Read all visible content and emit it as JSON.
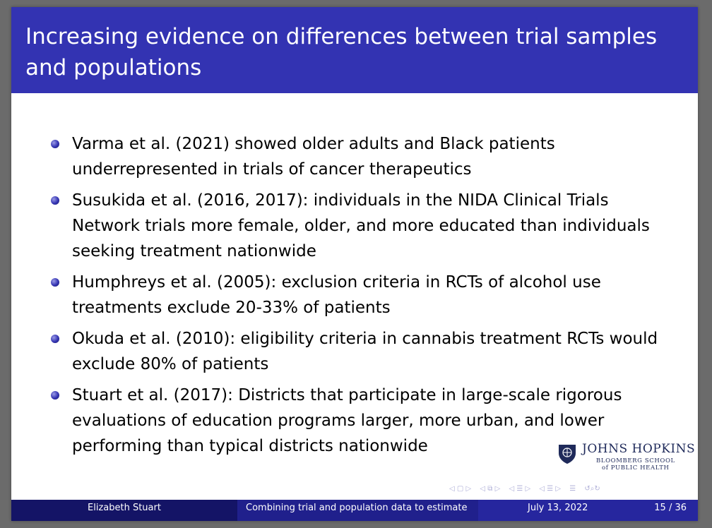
{
  "slide": {
    "title": "Increasing evidence on differences between trial samples and populations",
    "bullets": [
      "Varma et al. (2021) showed older adults and Black patients underrepresented in trials of cancer therapeutics",
      "Susukida et al. (2016, 2017): individuals in the NIDA Clinical Trials Network trials more female, older, and more educated than individuals seeking treatment nationwide",
      "Humphreys et al. (2005): exclusion criteria in RCTs of alcohol use treatments exclude 20-33% of patients",
      "Okuda et al. (2010): eligibility criteria in cannabis treatment RCTs would exclude 80% of patients",
      "Stuart et al. (2017): Districts that participate in large-scale rigorous evaluations of education programs larger, more urban, and lower performing than typical districts nationwide"
    ]
  },
  "logo": {
    "name": "JOHNS HOPKINS",
    "line1": "BLOOMBERG SCHOOL",
    "line2": "of PUBLIC HEALTH",
    "icon": "university-shield-icon"
  },
  "footer": {
    "author": "Elizabeth Stuart",
    "talk_title": "Combining trial and population data to estimate",
    "date": "July 13, 2022",
    "page": "15 / 36"
  },
  "navigation": {
    "icons": [
      "nav-frame-icon",
      "nav-subsection-icon",
      "nav-section-icon",
      "nav-document-icon",
      "nav-align-icon",
      "nav-search-icon"
    ]
  },
  "colors": {
    "title_bar": "#3333b2",
    "footer_author": "#141466",
    "footer_title": "#20208c",
    "footer_date": "#26269e"
  }
}
